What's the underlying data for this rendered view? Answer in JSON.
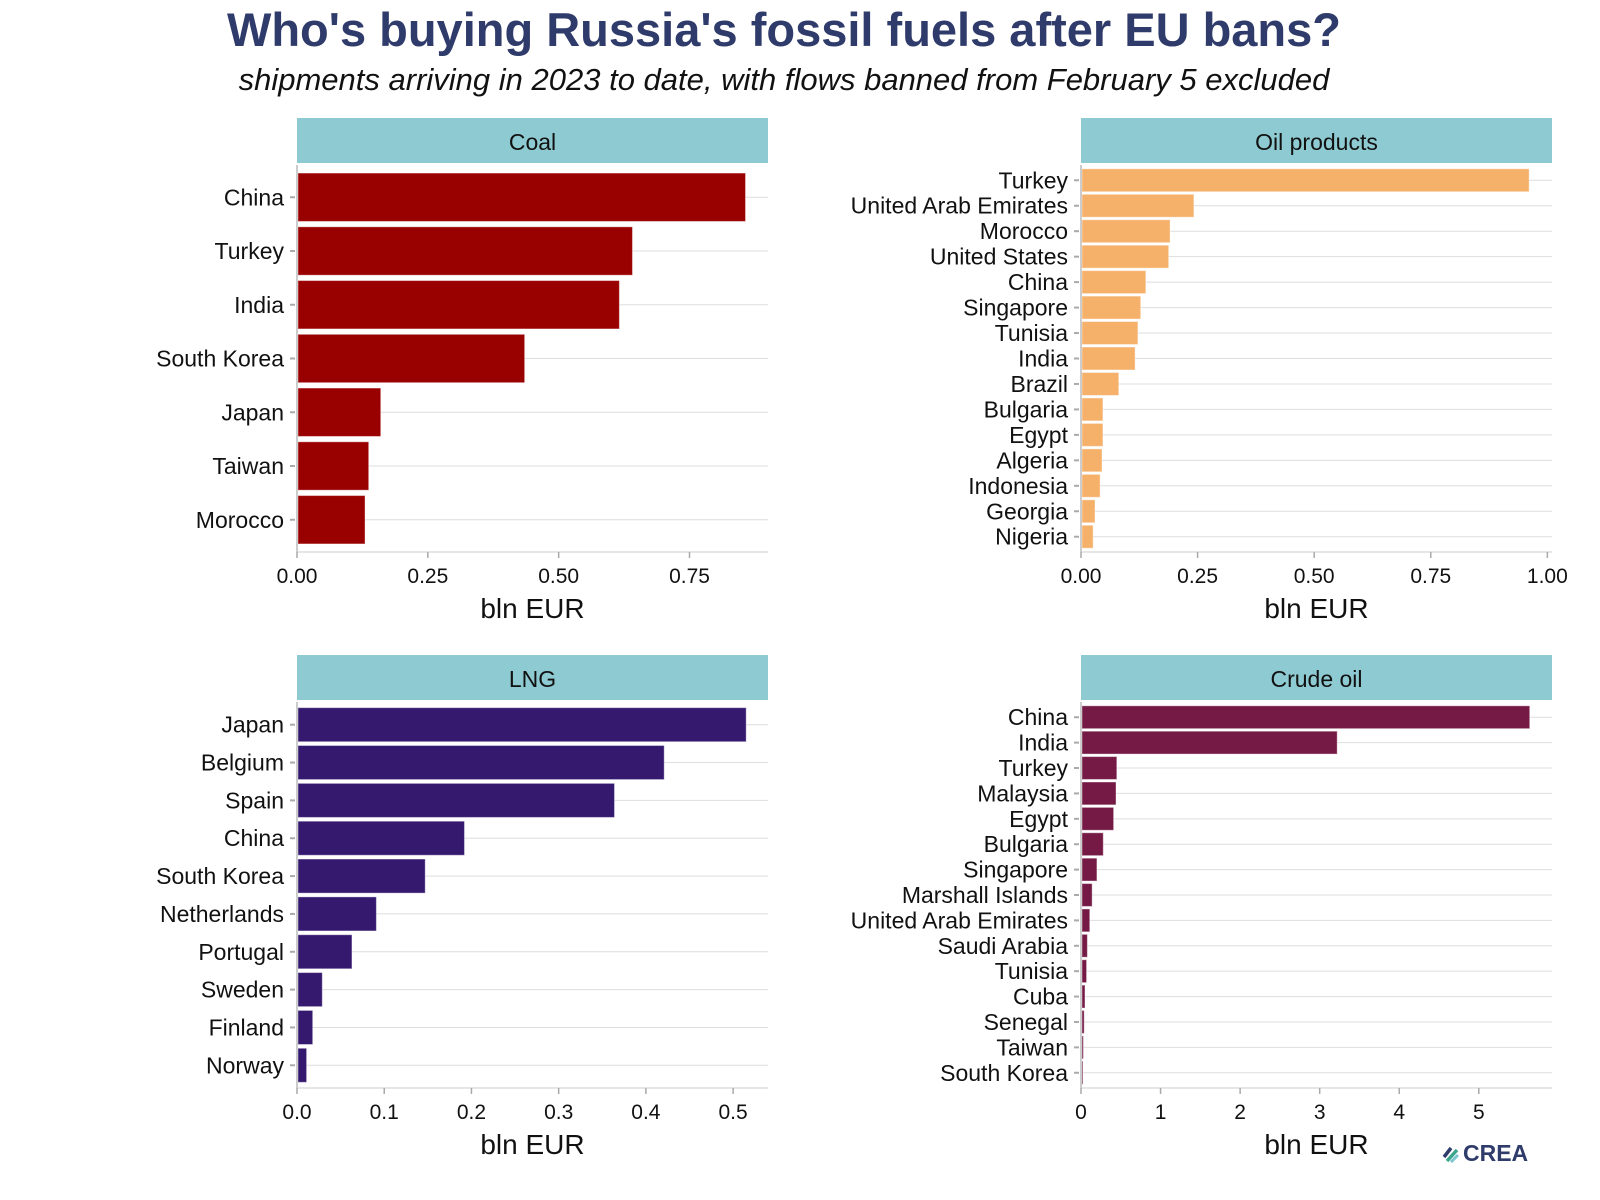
{
  "title": "Who's buying Russia's fossil fuels after EU bans?",
  "subtitle": "shipments arriving in 2023 to date, with flows banned from February 5 excluded",
  "logo": "CREA",
  "strip_color": "#8ecad1",
  "chart_data": [
    {
      "type": "bar",
      "orientation": "horizontal",
      "title": "Coal",
      "xlabel": "bln EUR",
      "color": "#990000",
      "xlim": [
        0,
        0.9
      ],
      "ticks": [
        0,
        0.25,
        0.5,
        0.75
      ],
      "tick_labels": [
        "0.00",
        "0.25",
        "0.50",
        "0.75"
      ],
      "categories": [
        "China",
        "Turkey",
        "India",
        "South Korea",
        "Japan",
        "Taiwan",
        "Morocco"
      ],
      "values": [
        0.857,
        0.641,
        0.616,
        0.435,
        0.16,
        0.137,
        0.13
      ]
    },
    {
      "type": "bar",
      "orientation": "horizontal",
      "title": "Oil products",
      "xlabel": "bln EUR",
      "color": "#f5b06a",
      "xlim": [
        0,
        1.01
      ],
      "ticks": [
        0,
        0.25,
        0.5,
        0.75,
        1.0
      ],
      "tick_labels": [
        "0.00",
        "0.25",
        "0.50",
        "0.75",
        "1.00"
      ],
      "categories": [
        "Turkey",
        "United Arab Emirates",
        "Morocco",
        "United States",
        "China",
        "Singapore",
        "Tunisia",
        "India",
        "Brazil",
        "Bulgaria",
        "Egypt",
        "Algeria",
        "Indonesia",
        "Georgia",
        "Nigeria"
      ],
      "values": [
        0.961,
        0.242,
        0.191,
        0.188,
        0.139,
        0.128,
        0.122,
        0.116,
        0.081,
        0.047,
        0.047,
        0.045,
        0.041,
        0.03,
        0.026
      ]
    },
    {
      "type": "bar",
      "orientation": "horizontal",
      "title": "LNG",
      "xlabel": "bln EUR",
      "color": "#35196e",
      "xlim": [
        0,
        0.54
      ],
      "ticks": [
        0,
        0.1,
        0.2,
        0.3,
        0.4,
        0.5
      ],
      "tick_labels": [
        "0.0",
        "0.1",
        "0.2",
        "0.3",
        "0.4",
        "0.5"
      ],
      "categories": [
        "Japan",
        "Belgium",
        "Spain",
        "China",
        "South Korea",
        "Netherlands",
        "Portugal",
        "Sweden",
        "Finland",
        "Norway"
      ],
      "values": [
        0.515,
        0.421,
        0.364,
        0.192,
        0.147,
        0.091,
        0.063,
        0.029,
        0.018,
        0.011
      ]
    },
    {
      "type": "bar",
      "orientation": "horizontal",
      "title": "Crude oil",
      "xlabel": "bln EUR",
      "color": "#741a45",
      "xlim": [
        0,
        5.92
      ],
      "ticks": [
        0,
        1,
        2,
        3,
        4,
        5
      ],
      "tick_labels": [
        "0",
        "1",
        "2",
        "3",
        "4",
        "5"
      ],
      "categories": [
        "China",
        "India",
        "Turkey",
        "Malaysia",
        "Egypt",
        "Bulgaria",
        "Singapore",
        "Marshall Islands",
        "United Arab Emirates",
        "Saudi Arabia",
        "Tunisia",
        "Cuba",
        "Senegal",
        "Taiwan",
        "South Korea"
      ],
      "values": [
        5.64,
        3.22,
        0.45,
        0.44,
        0.41,
        0.28,
        0.2,
        0.14,
        0.11,
        0.08,
        0.07,
        0.05,
        0.04,
        0.03,
        0.02
      ]
    }
  ]
}
